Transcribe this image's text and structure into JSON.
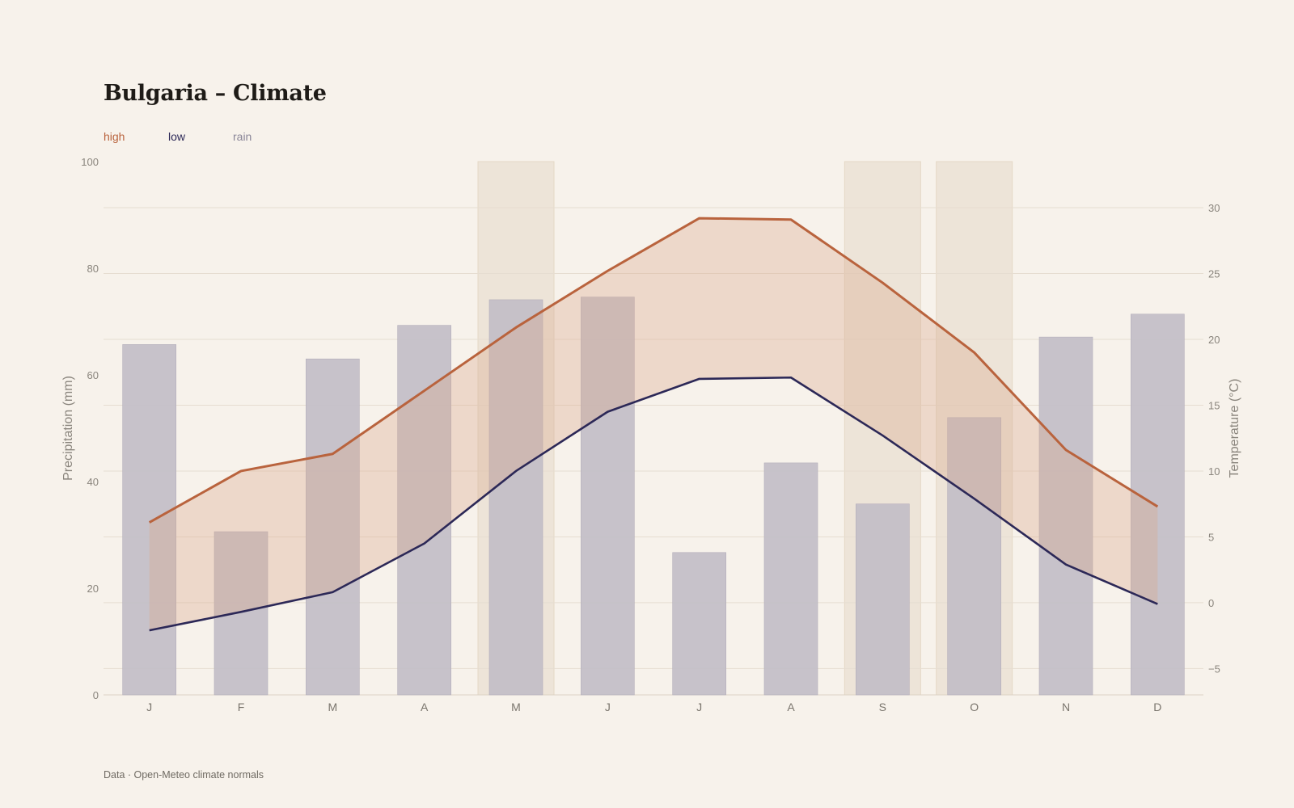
{
  "title": "Bulgaria – Climate",
  "legend": {
    "high": "high",
    "low": "low",
    "rain": "rain"
  },
  "source": "Data · Open-Meteo climate normals",
  "colors": {
    "high": "#b9633d",
    "low": "#2c2857",
    "rain": "#c2bec7",
    "band": "#e9d6c8",
    "highlight": "#ede4d8",
    "background": "#f7f2eb"
  },
  "chart_data": {
    "type": "bar+line",
    "categories": [
      "J",
      "F",
      "M",
      "A",
      "M",
      "J",
      "J",
      "A",
      "S",
      "O",
      "N",
      "D"
    ],
    "y_left": {
      "label": "Precipitation (mm)",
      "ylim": [
        0,
        100
      ],
      "ticks": [
        0,
        20,
        40,
        60,
        80,
        100
      ]
    },
    "y_right": {
      "label": "Temperature (°C)",
      "ylim": [
        -7.0,
        33.5
      ],
      "ticks": [
        -5,
        0,
        5,
        10,
        15,
        20,
        25,
        30
      ]
    },
    "series": [
      {
        "name": "rain",
        "type": "bar",
        "axis": "left",
        "values": [
          65.7,
          30.6,
          63.0,
          69.3,
          74.1,
          74.6,
          26.7,
          43.5,
          35.8,
          52.0,
          67.1,
          71.4
        ]
      },
      {
        "name": "high",
        "type": "line",
        "axis": "right",
        "values": [
          6.1,
          10.0,
          11.3,
          16.1,
          20.9,
          25.2,
          29.2,
          29.1,
          24.3,
          19.0,
          11.6,
          7.3
        ]
      },
      {
        "name": "low",
        "type": "line",
        "axis": "right",
        "values": [
          -2.1,
          -0.7,
          0.8,
          4.5,
          10.0,
          14.5,
          17.0,
          17.1,
          12.7,
          7.9,
          2.9,
          -0.1
        ]
      }
    ],
    "highlighted_months": [
      4,
      8,
      9
    ],
    "grid": "horizontal",
    "legend_position": "top-left"
  }
}
